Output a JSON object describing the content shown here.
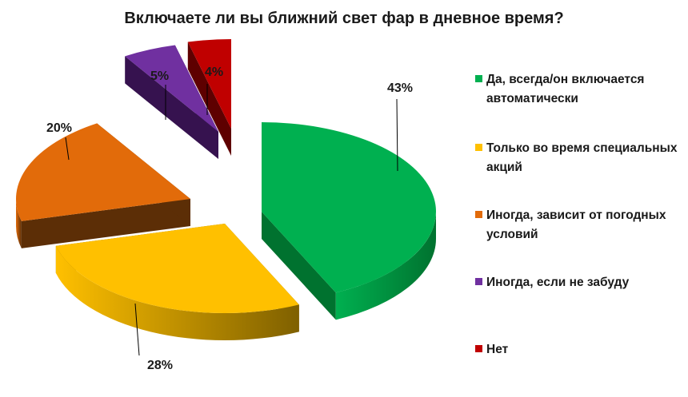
{
  "chart_data": {
    "type": "pie",
    "variant": "3d-exploded",
    "title": "Включаете ли вы ближний свет фар в дневное время?",
    "legend_position": "right",
    "slices": [
      {
        "label": "Да, всегда/он включается автоматически",
        "value": 43,
        "value_label": "43%",
        "color": "#00B050",
        "side_color": "#00722F"
      },
      {
        "label": "Только во время специальных акций",
        "value": 28,
        "value_label": "28%",
        "color": "#FFC000",
        "side_color": "#7F6000"
      },
      {
        "label": "Иногда, зависит от погодных условий",
        "value": 20,
        "value_label": "20%",
        "color": "#E26B0A",
        "side_color": "#5C2E06"
      },
      {
        "label": "Иногда, если не забуду",
        "value": 5,
        "value_label": "5%",
        "color": "#7030A0",
        "side_color": "#36124F"
      },
      {
        "label": "Нет",
        "value": 4,
        "value_label": "4%",
        "color": "#C00000",
        "side_color": "#5E0000"
      }
    ]
  }
}
